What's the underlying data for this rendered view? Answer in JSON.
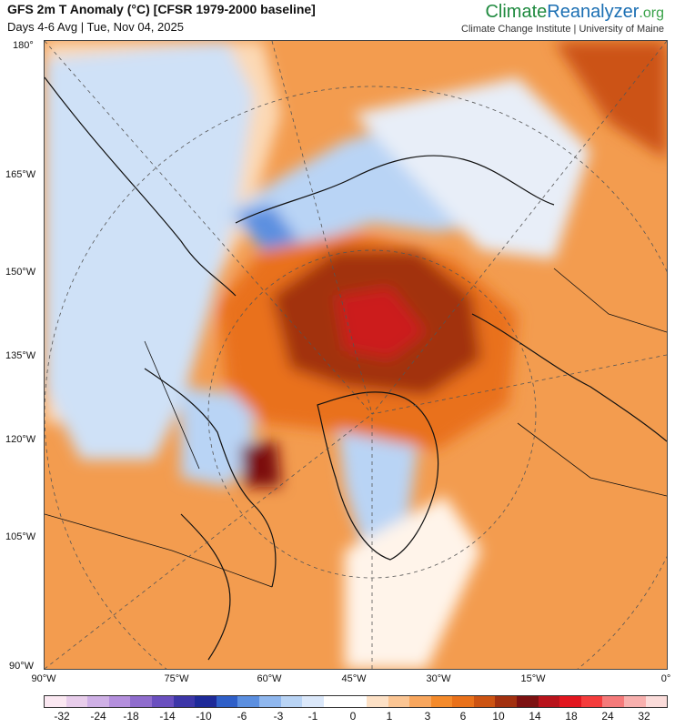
{
  "header": {
    "title": "GFS 2m T Anomaly (°C) [CFSR 1979-2000 baseline]",
    "subtitle": "Days 4-6 Avg | Tue, Nov 04, 2025",
    "brand_part1": "Climate",
    "brand_part2": "Reanalyzer",
    "brand_part3": ".org",
    "credit": "Climate Change Institute | University of Maine"
  },
  "axes": {
    "left_labels": [
      "180°",
      "165°W",
      "150°W",
      "135°W",
      "120°W",
      "105°W",
      "90°W"
    ],
    "bottom_labels": [
      "90°W",
      "75°W",
      "60°W",
      "45°W",
      "30°W",
      "15°W",
      "0°"
    ]
  },
  "legend": {
    "colors": [
      "#fbe8f2",
      "#e8cdeb",
      "#cfb0e6",
      "#b48fdd",
      "#8f6ccd",
      "#6a4fbf",
      "#3d36a8",
      "#1e2a99",
      "#2f5fc8",
      "#5b8fe0",
      "#8fb7ee",
      "#b9d4f5",
      "#dbe8fa",
      "#ffffff",
      "#ffffff",
      "#fde1c6",
      "#fbc593",
      "#f8a65d",
      "#f48a2b",
      "#e9711a",
      "#cc5312",
      "#a2300f",
      "#7c1111",
      "#b8131b",
      "#e2161f",
      "#f43c3c",
      "#f57a7a",
      "#f8b0ae",
      "#fbdcda"
    ],
    "ticks": [
      "-32",
      "-24",
      "-18",
      "-14",
      "-10",
      "-6",
      "-3",
      "-1",
      "0",
      "1",
      "3",
      "6",
      "10",
      "14",
      "18",
      "24",
      "32"
    ]
  }
}
